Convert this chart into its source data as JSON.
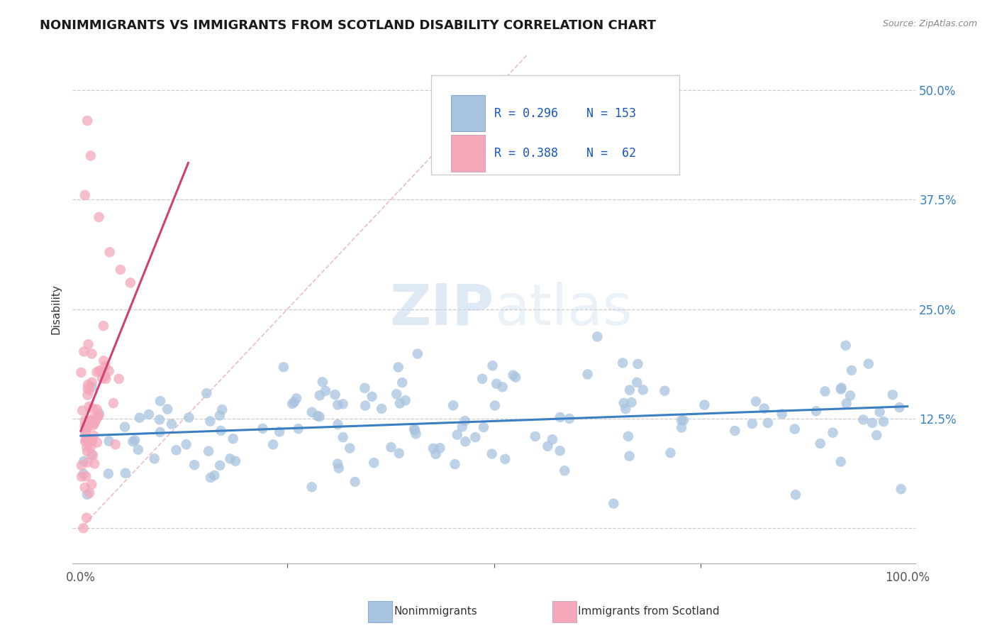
{
  "title": "NONIMMIGRANTS VS IMMIGRANTS FROM SCOTLAND DISABILITY CORRELATION CHART",
  "source": "Source: ZipAtlas.com",
  "ylabel": "Disability",
  "watermark": "ZIPatlas",
  "nonimmigrant_color": "#a8c4e0",
  "immigrant_color": "#f4a7b9",
  "line_nonimmigrant": "#3a7fc1",
  "line_immigrant": "#d04070",
  "diag_line_color": "#e0a0b0",
  "r_nonimmigrant": 0.296,
  "n_nonimmigrant": 153,
  "r_immigrant": 0.388,
  "n_immigrant": 62,
  "xlim": [
    -0.01,
    1.01
  ],
  "ylim": [
    -0.04,
    0.54
  ],
  "ytick_positions": [
    0.0,
    0.125,
    0.25,
    0.375,
    0.5
  ],
  "ytick_labels_right": [
    "",
    "12.5%",
    "25.0%",
    "37.5%",
    "50.0%"
  ],
  "xtick_positions": [
    0.0,
    0.25,
    0.5,
    0.75,
    1.0
  ],
  "xtick_labels_bottom": [
    "0.0%",
    "",
    "",
    "",
    "100.0%"
  ],
  "grid_color": "#cccccc",
  "background_color": "#ffffff",
  "title_fontsize": 13,
  "tick_fontsize": 12,
  "right_tick_color": "#3a7fc1"
}
